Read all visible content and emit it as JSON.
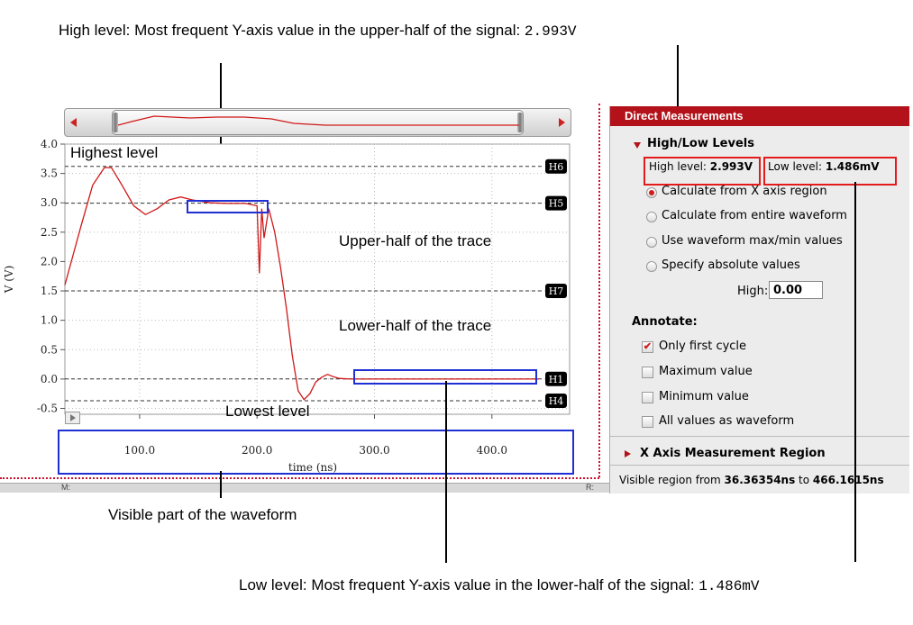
{
  "callouts": {
    "high_level_prefix": "High level: Most frequent Y-axis value in the upper-half of the signal: ",
    "high_level_value": "2.993V",
    "low_level_prefix": "Low level: Most frequent Y-axis value in the lower-half of the signal: ",
    "low_level_value": "1.486mV",
    "visible_part": "Visible part of the waveform",
    "highest_level": "Highest level",
    "lowest_level": "Lowest level",
    "upper_half": "Upper-half of the trace",
    "lower_half": "Lower-half of the trace"
  },
  "chart_data": {
    "type": "line",
    "xlabel": "time (ns)",
    "ylabel": "V (V)",
    "xlim": [
      36.36354,
      466.1615
    ],
    "ylim": [
      -0.6,
      4.0
    ],
    "x_ticks": [
      "100.0",
      "200.0",
      "300.0",
      "400.0"
    ],
    "x_tick_values": [
      100,
      200,
      300,
      400
    ],
    "y_ticks": [
      "4.0",
      "3.5",
      "3.0",
      "2.5",
      "2.0",
      "1.5",
      "1.0",
      "0.5",
      "0.0",
      "-0.5"
    ],
    "y_tick_values": [
      4.0,
      3.5,
      3.0,
      2.5,
      2.0,
      1.5,
      1.0,
      0.5,
      0.0,
      -0.5
    ],
    "grid": true,
    "series": [
      {
        "color": "#d01818",
        "x": [
          36.4,
          50,
          60,
          70,
          76,
          85,
          95,
          105,
          115,
          125,
          135,
          145,
          160,
          175,
          190,
          200,
          202,
          204,
          206,
          210,
          215,
          220,
          225,
          230,
          235,
          240,
          245,
          250,
          255,
          260,
          265,
          270,
          280,
          300,
          350,
          400,
          440
        ],
        "y": [
          1.6,
          2.6,
          3.3,
          3.6,
          3.6,
          3.3,
          2.95,
          2.8,
          2.9,
          3.05,
          3.1,
          3.05,
          3.0,
          2.99,
          2.99,
          2.95,
          1.8,
          2.9,
          2.4,
          2.9,
          2.5,
          1.9,
          1.2,
          0.4,
          -0.2,
          -0.35,
          -0.25,
          -0.05,
          0.03,
          0.08,
          0.04,
          0.01,
          0.0,
          0.0,
          0.0,
          0.0,
          0.0
        ]
      }
    ],
    "levels": [
      {
        "name": "H6",
        "value": 3.62
      },
      {
        "name": "H5",
        "value": 2.993
      },
      {
        "name": "H7",
        "value": 1.5
      },
      {
        "name": "H1",
        "value": 0.0015
      },
      {
        "name": "H4",
        "value": -0.37
      }
    ]
  },
  "panel": {
    "title": "Direct Measurements",
    "section_high_low": "High/Low Levels",
    "high_level_label": "High level: ",
    "high_level_value": "2.993V",
    "low_level_label": "Low level: ",
    "low_level_value": "1.486mV",
    "radio_options": [
      {
        "label": "Calculate from X axis region",
        "selected": true
      },
      {
        "label": "Calculate from entire waveform",
        "selected": false
      },
      {
        "label": "Use waveform max/min values",
        "selected": false
      },
      {
        "label": "Specify absolute values",
        "selected": false
      }
    ],
    "high_field_label": "High:",
    "high_field_value": "0.00",
    "annotate_label": "Annotate:",
    "annotate_options": [
      {
        "label": "Only first cycle",
        "checked": true
      },
      {
        "label": "Maximum value",
        "checked": false
      },
      {
        "label": "Minimum value",
        "checked": false
      },
      {
        "label": "All values as waveform",
        "checked": false
      }
    ],
    "section_x_axis": "X Axis Measurement Region",
    "visible_region_prefix": "Visible region from ",
    "visible_region_from": "36.36354ns",
    "visible_region_to_word": " to ",
    "visible_region_to": "466.1615ns"
  },
  "footer_left": "M:",
  "footer_right": "R:"
}
